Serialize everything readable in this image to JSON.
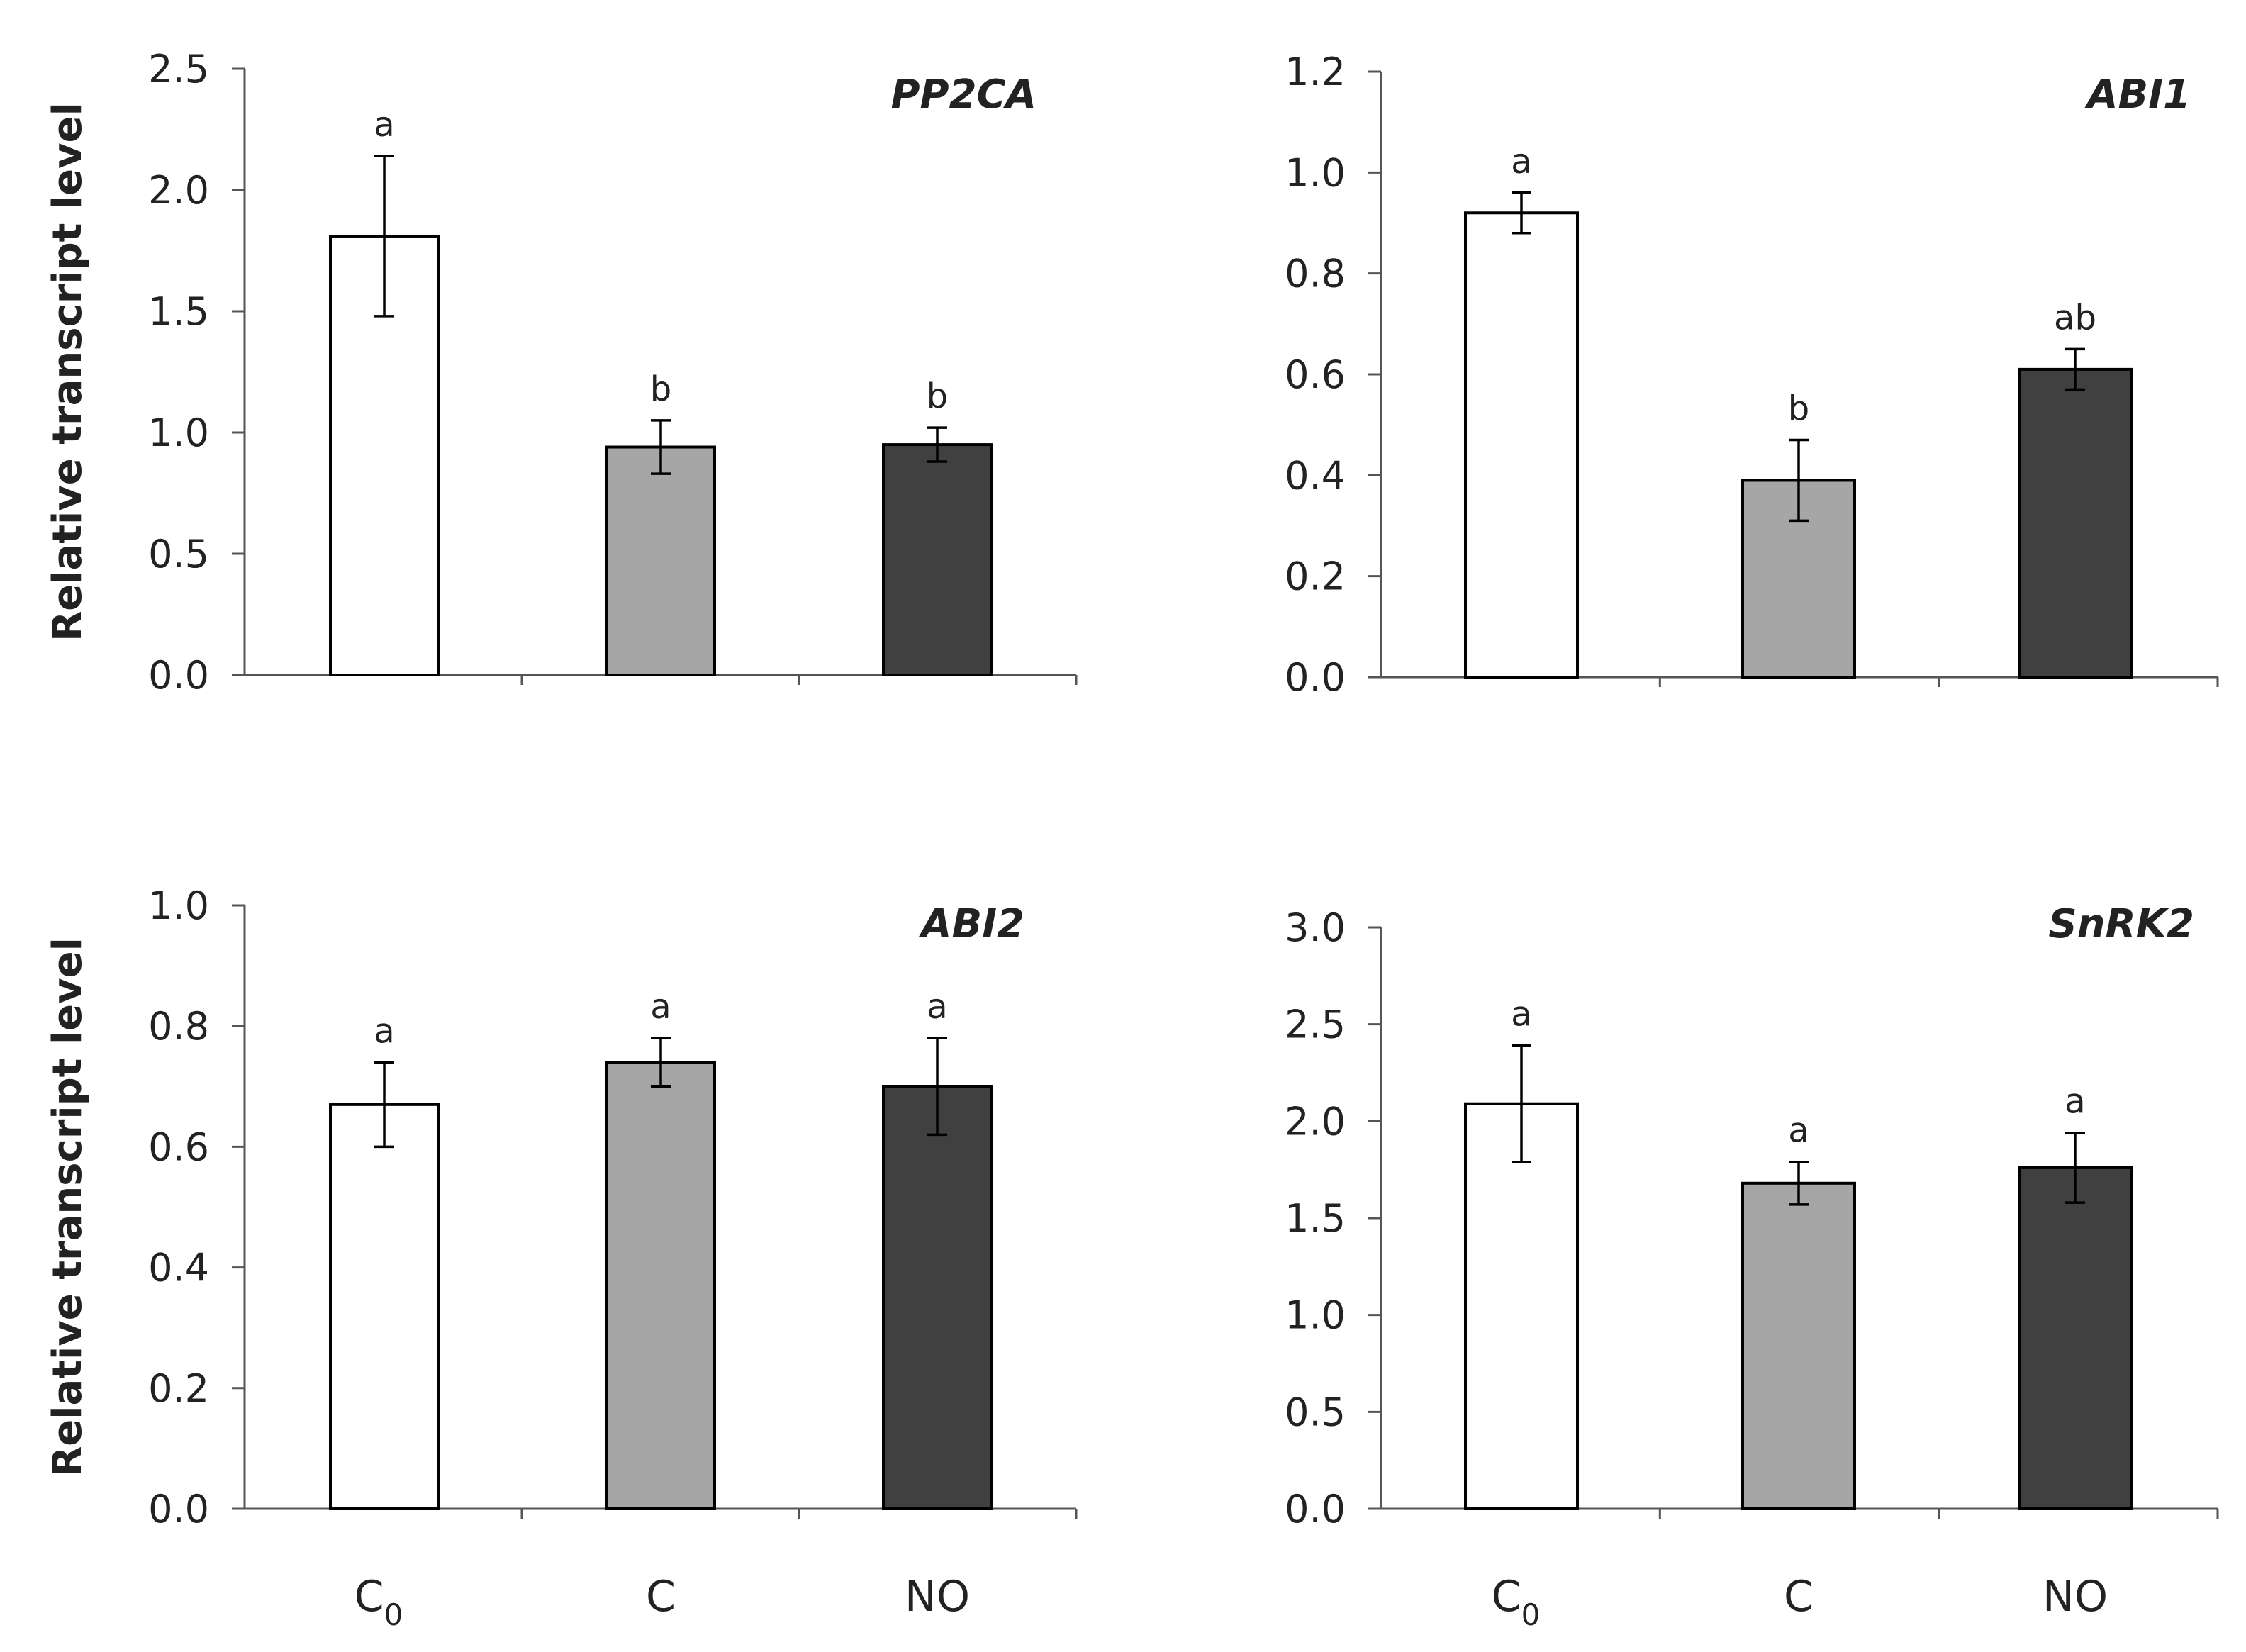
{
  "figure": {
    "ylabel": "Relative transcript level",
    "categories": [
      {
        "main": "C",
        "sub": "0"
      },
      {
        "main": "C",
        "sub": ""
      },
      {
        "main": "NO",
        "sub": ""
      }
    ],
    "bar_colors": [
      "#ffffff",
      "#a6a6a6",
      "#404040"
    ]
  },
  "chart_data": [
    {
      "type": "bar",
      "title": "PP2CA",
      "ylabel": "Relative transcript level",
      "ylim": [
        0,
        2.5
      ],
      "yticks": [
        "0.0",
        "0.5",
        "1.0",
        "1.5",
        "2.0",
        "2.5"
      ],
      "categories": [
        "C0",
        "C",
        "NO"
      ],
      "values": [
        1.81,
        0.94,
        0.95
      ],
      "errors": [
        0.33,
        0.11,
        0.07
      ],
      "sig": [
        "a",
        "b",
        "b"
      ]
    },
    {
      "type": "bar",
      "title": "ABI1",
      "ylabel": "",
      "ylim": [
        0,
        1.2
      ],
      "yticks": [
        "0.0",
        "0.2",
        "0.4",
        "0.6",
        "0.8",
        "1.0",
        "1.2"
      ],
      "categories": [
        "C0",
        "C",
        "NO"
      ],
      "values": [
        0.92,
        0.39,
        0.61
      ],
      "errors": [
        0.04,
        0.08,
        0.04
      ],
      "sig": [
        "a",
        "b",
        "ab"
      ]
    },
    {
      "type": "bar",
      "title": "ABI2",
      "ylabel": "Relative transcript level",
      "ylim": [
        0,
        1.0
      ],
      "yticks": [
        "0.0",
        "0.2",
        "0.4",
        "0.6",
        "0.8",
        "1.0"
      ],
      "categories": [
        "C0",
        "C",
        "NO"
      ],
      "values": [
        0.67,
        0.74,
        0.7
      ],
      "errors": [
        0.07,
        0.04,
        0.08
      ],
      "sig": [
        "a",
        "a",
        "a"
      ]
    },
    {
      "type": "bar",
      "title": "SnRK2",
      "ylabel": "",
      "ylim": [
        0,
        3.0
      ],
      "yticks": [
        "0.0",
        "0.5",
        "1.0",
        "1.5",
        "2.0",
        "2.5",
        "3.0"
      ],
      "categories": [
        "C0",
        "C",
        "NO"
      ],
      "values": [
        2.09,
        1.68,
        1.76
      ],
      "errors": [
        0.3,
        0.11,
        0.18
      ],
      "sig": [
        "a",
        "a",
        "a"
      ]
    }
  ]
}
